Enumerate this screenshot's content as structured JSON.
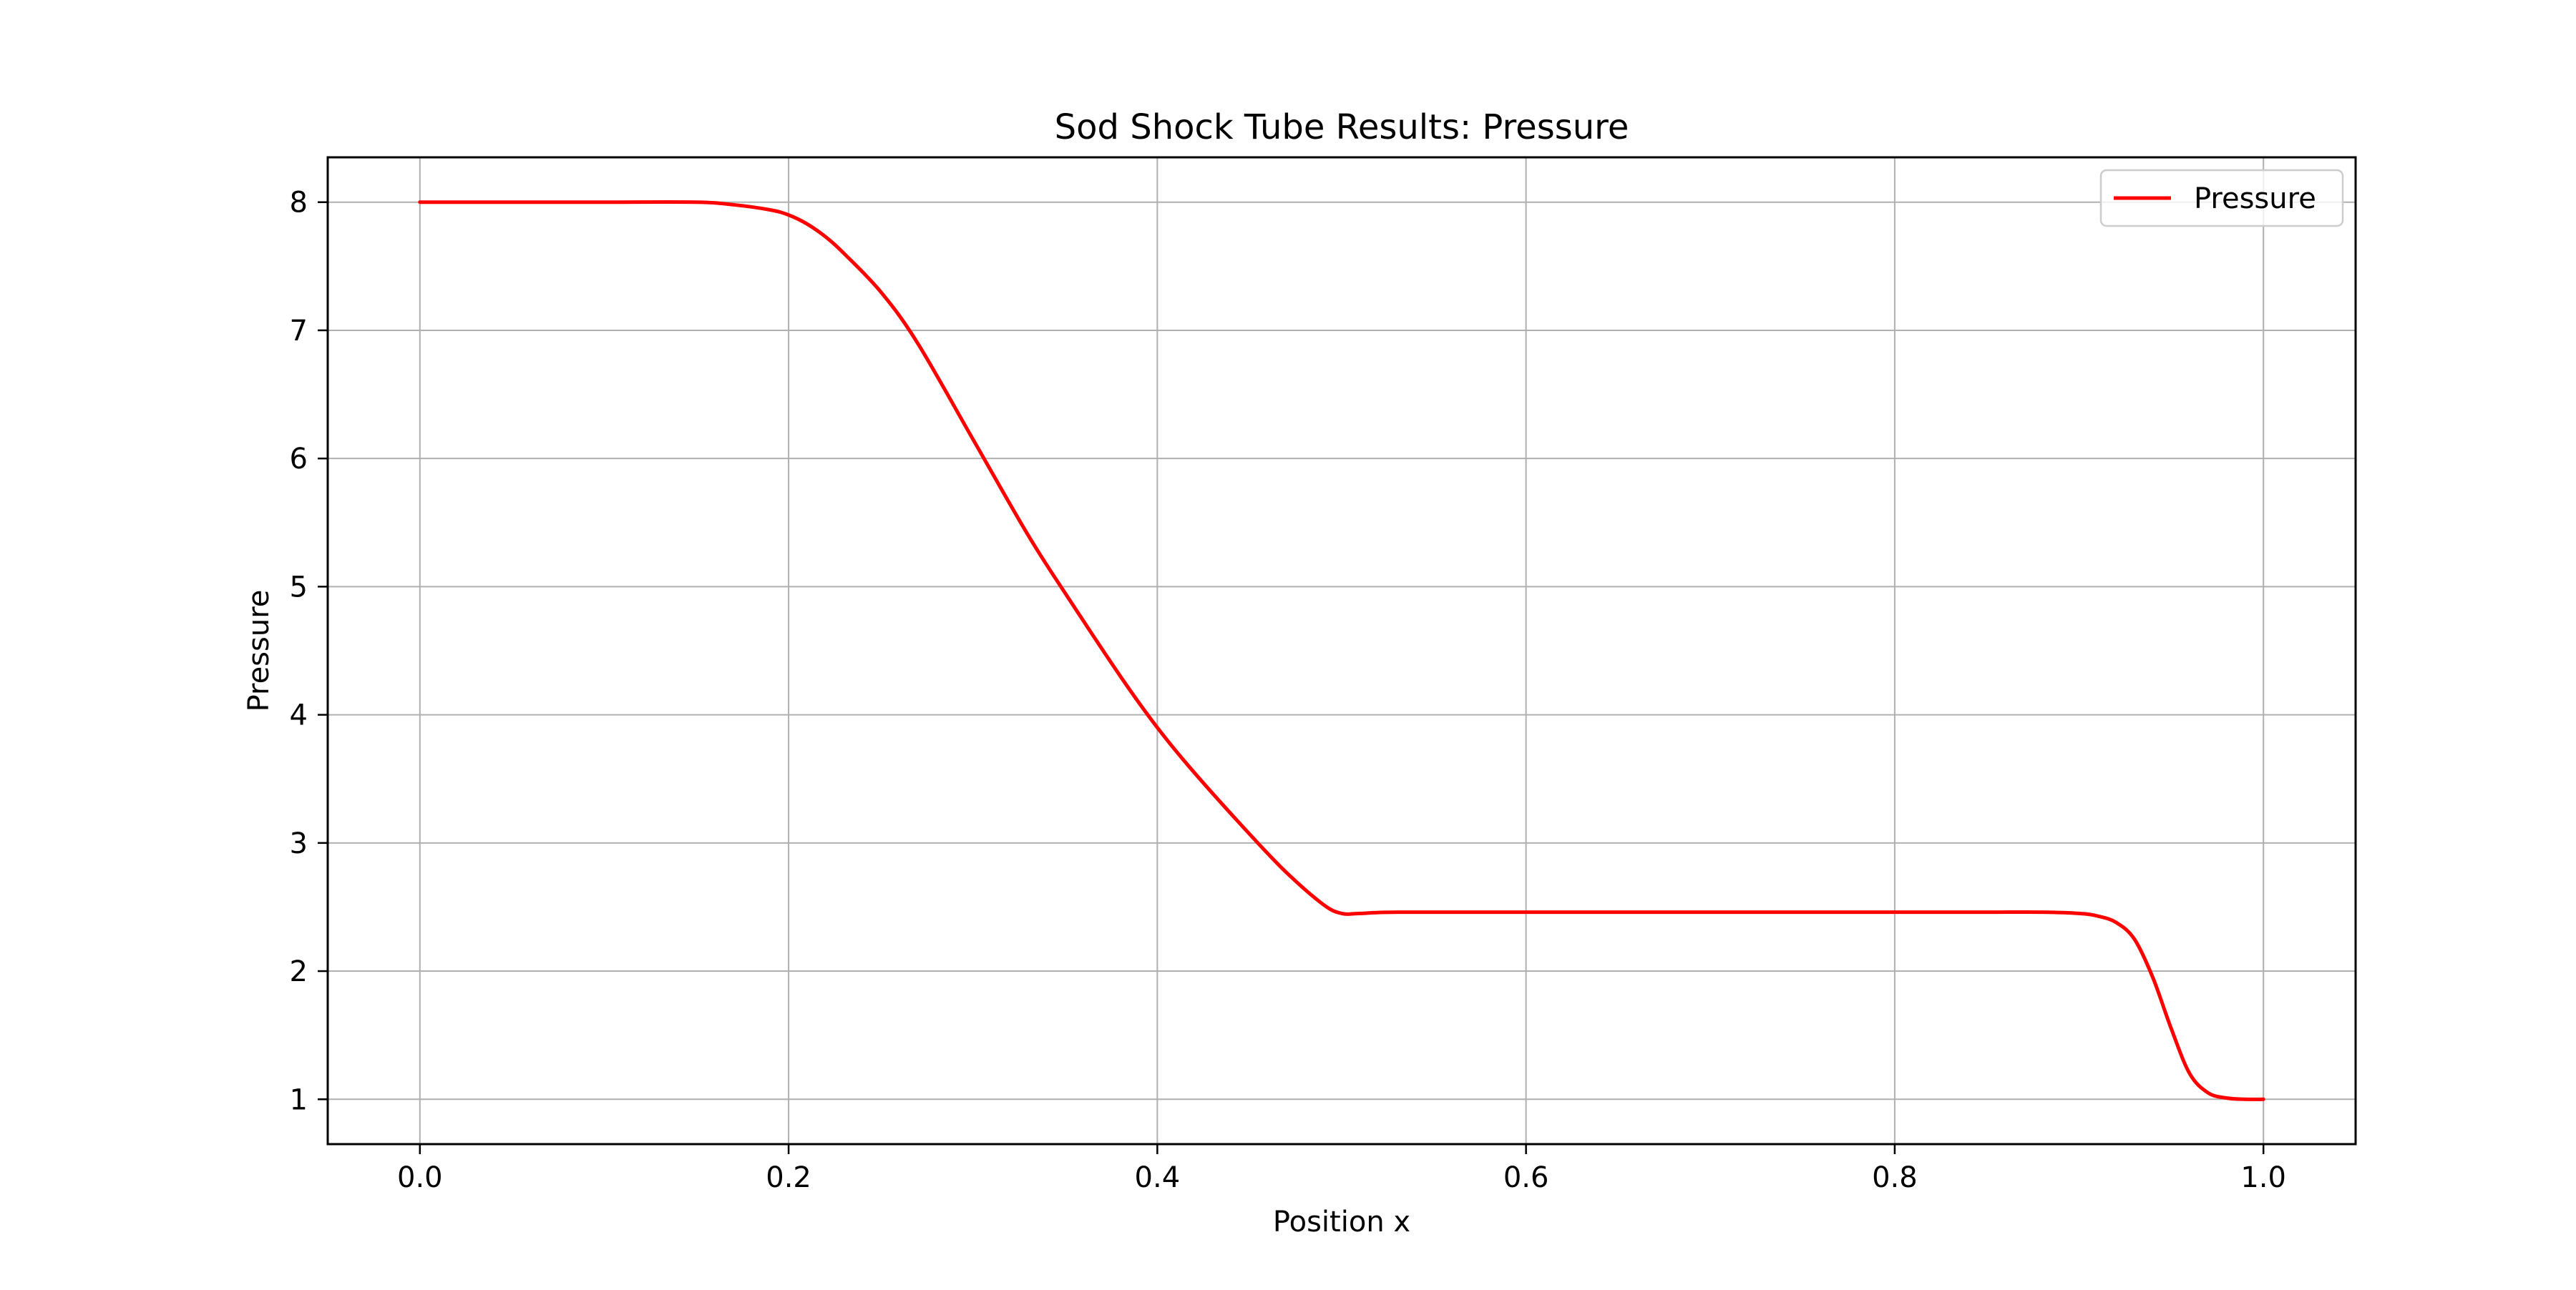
{
  "chart_data": {
    "type": "line",
    "title": "Sod Shock Tube Results: Pressure",
    "xlabel": "Position x",
    "ylabel": "Pressure",
    "xlim": [
      -0.05,
      1.05
    ],
    "ylim": [
      0.65,
      8.35
    ],
    "xticks": [
      0.0,
      0.2,
      0.4,
      0.6,
      0.8,
      1.0
    ],
    "xtick_labels": [
      "0.0",
      "0.2",
      "0.4",
      "0.6",
      "0.8",
      "1.0"
    ],
    "yticks": [
      1,
      2,
      3,
      4,
      5,
      6,
      7,
      8
    ],
    "ytick_labels": [
      "1",
      "2",
      "3",
      "4",
      "5",
      "6",
      "7",
      "8"
    ],
    "grid": true,
    "legend_position": "top-right",
    "series": [
      {
        "name": "Pressure",
        "color": "#ff0000",
        "x": [
          0.0,
          0.05,
          0.1,
          0.15,
          0.17,
          0.19,
          0.2,
          0.21,
          0.22,
          0.23,
          0.25,
          0.27,
          0.3,
          0.33,
          0.35,
          0.38,
          0.4,
          0.42,
          0.45,
          0.47,
          0.49,
          0.5,
          0.51,
          0.53,
          0.6,
          0.7,
          0.8,
          0.85,
          0.88,
          0.9,
          0.91,
          0.92,
          0.93,
          0.94,
          0.95,
          0.96,
          0.97,
          0.98,
          0.99,
          1.0
        ],
        "y": [
          8.0,
          8.0,
          8.0,
          8.0,
          7.98,
          7.94,
          7.9,
          7.83,
          7.73,
          7.6,
          7.3,
          6.9,
          6.15,
          5.4,
          4.95,
          4.3,
          3.9,
          3.55,
          3.07,
          2.77,
          2.52,
          2.45,
          2.45,
          2.46,
          2.46,
          2.46,
          2.46,
          2.46,
          2.46,
          2.45,
          2.43,
          2.38,
          2.25,
          1.95,
          1.55,
          1.2,
          1.05,
          1.01,
          1.0,
          1.0
        ]
      }
    ]
  }
}
